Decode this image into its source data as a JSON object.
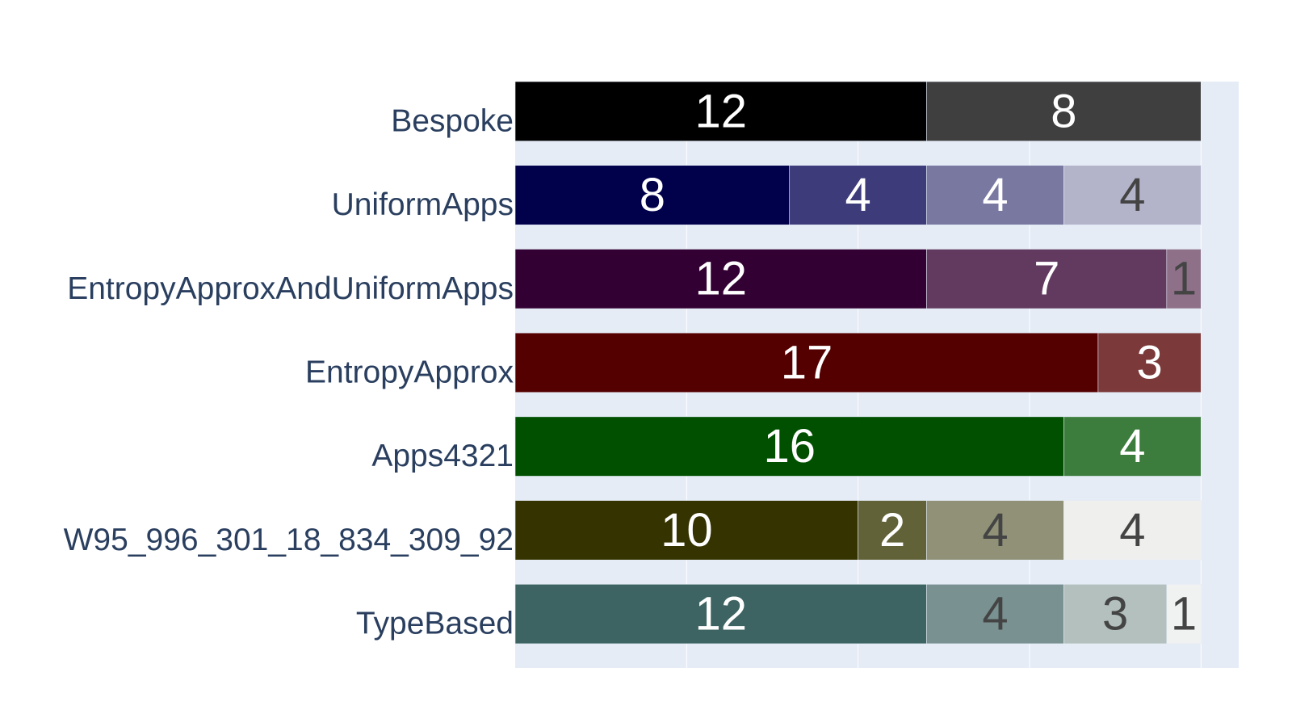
{
  "chart_data": {
    "type": "bar",
    "orientation": "horizontal",
    "barmode": "stack",
    "xlim": [
      0,
      21.1
    ],
    "grid": true,
    "legend": "none",
    "plot_bg": "#e5ecf6",
    "gridline_color": "#ffffff",
    "category_label_color": "#2a3f5f",
    "categories": [
      {
        "label": "Bespoke",
        "segments": [
          {
            "value": 12,
            "color": "#000000",
            "text_color": "#ffffff"
          },
          {
            "value": 8,
            "color": "#3f3f3f",
            "text_color": "#ffffff"
          }
        ]
      },
      {
        "label": "UniformApps",
        "segments": [
          {
            "value": 8,
            "color": "#00004b",
            "text_color": "#ffffff"
          },
          {
            "value": 4,
            "color": "#3d3b7a",
            "text_color": "#ffffff"
          },
          {
            "value": 4,
            "color": "#7878a1",
            "text_color": "#ffffff"
          },
          {
            "value": 4,
            "color": "#b3b3ca",
            "text_color": "#444444"
          }
        ]
      },
      {
        "label": "EntropyApproxAndUniformApps",
        "segments": [
          {
            "value": 12,
            "color": "#330033",
            "text_color": "#ffffff"
          },
          {
            "value": 7,
            "color": "#623a5f",
            "text_color": "#ffffff"
          },
          {
            "value": 1,
            "color": "#8e7189",
            "text_color": "#444444"
          }
        ]
      },
      {
        "label": "EntropyApprox",
        "segments": [
          {
            "value": 17,
            "color": "#550000",
            "text_color": "#ffffff"
          },
          {
            "value": 3,
            "color": "#7b3939",
            "text_color": "#ffffff"
          }
        ]
      },
      {
        "label": "Apps4321",
        "segments": [
          {
            "value": 16,
            "color": "#005000",
            "text_color": "#ffffff"
          },
          {
            "value": 4,
            "color": "#3c7c3c",
            "text_color": "#ffffff"
          }
        ]
      },
      {
        "label": "W95_996_301_18_834_309_92",
        "segments": [
          {
            "value": 10,
            "color": "#353300",
            "text_color": "#ffffff"
          },
          {
            "value": 2,
            "color": "#626239",
            "text_color": "#ffffff"
          },
          {
            "value": 4,
            "color": "#919178",
            "text_color": "#444444"
          },
          {
            "value": 4,
            "color": "#eff0ee",
            "text_color": "#444444"
          }
        ]
      },
      {
        "label": "TypeBased",
        "segments": [
          {
            "value": 12,
            "color": "#3d6462",
            "text_color": "#ffffff"
          },
          {
            "value": 4,
            "color": "#799291",
            "text_color": "#444444"
          },
          {
            "value": 3,
            "color": "#b3c0be",
            "text_color": "#444444"
          },
          {
            "value": 1,
            "color": "#f0f2f1",
            "text_color": "#444444"
          }
        ]
      }
    ]
  }
}
